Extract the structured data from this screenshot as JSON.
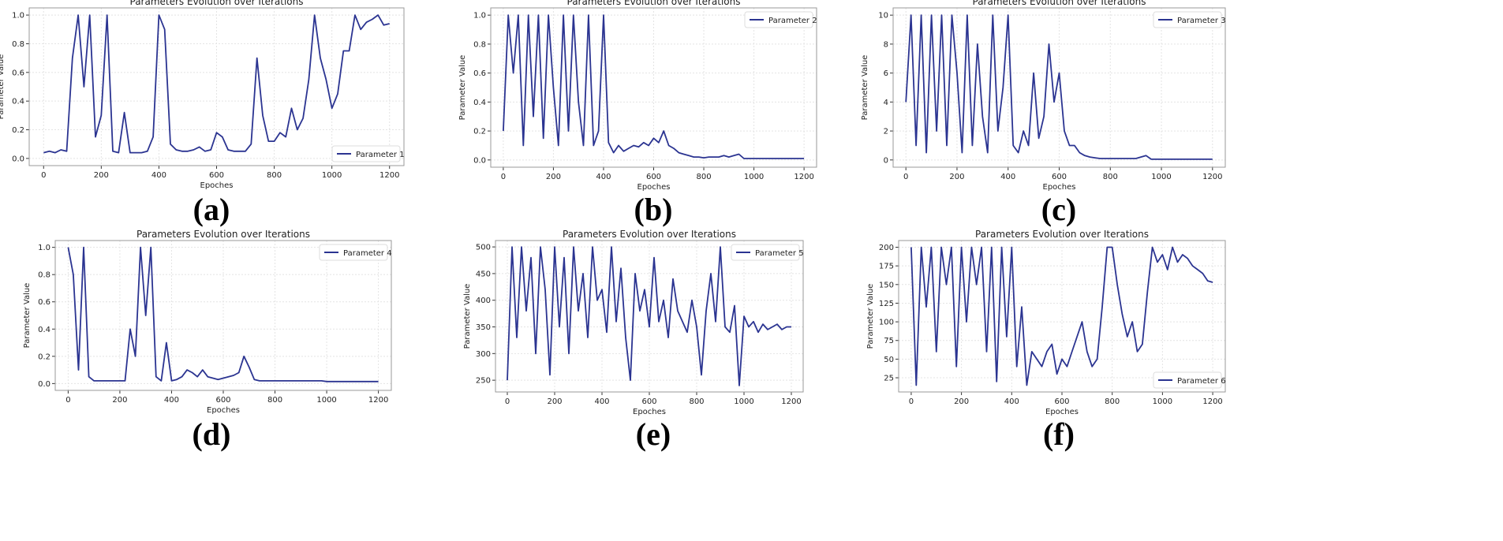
{
  "line_color": "#2b3491",
  "chart_data": [
    {
      "type": "line",
      "panel_label": "(a)",
      "title": "Parameters Evolution over Iterations",
      "xlabel": "Epoches",
      "ylabel": "Parameter Value",
      "legend": "Parameter 1",
      "legend_loc": "bottom-right",
      "grid": true,
      "xlim": [
        -50,
        1250
      ],
      "ylim": [
        -0.05,
        1.05
      ],
      "xticks": [
        0,
        200,
        400,
        600,
        800,
        1000,
        1200
      ],
      "yticks": [
        "0.0",
        "0.2",
        "0.4",
        "0.6",
        "0.8",
        "1.0"
      ],
      "x_start": 0,
      "x_step": 20,
      "values": [
        0.04,
        0.05,
        0.04,
        0.06,
        0.05,
        0.7,
        1.0,
        0.5,
        1.0,
        0.15,
        0.3,
        1.0,
        0.05,
        0.04,
        0.32,
        0.04,
        0.04,
        0.04,
        0.05,
        0.15,
        1.0,
        0.9,
        0.1,
        0.06,
        0.05,
        0.05,
        0.06,
        0.08,
        0.05,
        0.06,
        0.18,
        0.15,
        0.06,
        0.05,
        0.05,
        0.05,
        0.1,
        0.7,
        0.3,
        0.12,
        0.12,
        0.18,
        0.15,
        0.35,
        0.2,
        0.28,
        0.55,
        1.0,
        0.7,
        0.55,
        0.35,
        0.45,
        0.75,
        0.75,
        1.0,
        0.9,
        0.95,
        0.97,
        1.0,
        0.93,
        0.94
      ]
    },
    {
      "type": "line",
      "panel_label": "(b)",
      "title": "Parameters Evolution over Iterations",
      "xlabel": "Epoches",
      "ylabel": "Parameter Value",
      "legend": "Parameter 2",
      "legend_loc": "top-right",
      "grid": true,
      "xlim": [
        -50,
        1250
      ],
      "ylim": [
        -0.05,
        1.05
      ],
      "xticks": [
        0,
        200,
        400,
        600,
        800,
        1000,
        1200
      ],
      "yticks": [
        "0.0",
        "0.2",
        "0.4",
        "0.6",
        "0.8",
        "1.0"
      ],
      "x_start": 0,
      "x_step": 20,
      "values": [
        0.2,
        1.0,
        0.6,
        1.0,
        0.1,
        1.0,
        0.3,
        1.0,
        0.15,
        1.0,
        0.5,
        0.1,
        1.0,
        0.2,
        1.0,
        0.4,
        0.1,
        1.0,
        0.1,
        0.2,
        1.0,
        0.12,
        0.05,
        0.1,
        0.06,
        0.08,
        0.1,
        0.09,
        0.12,
        0.1,
        0.15,
        0.12,
        0.2,
        0.1,
        0.08,
        0.05,
        0.04,
        0.03,
        0.02,
        0.02,
        0.015,
        0.02,
        0.02,
        0.02,
        0.03,
        0.02,
        0.03,
        0.04,
        0.01,
        0.01,
        0.01,
        0.01,
        0.01,
        0.01,
        0.01,
        0.01,
        0.01,
        0.01,
        0.01,
        0.01,
        0.01
      ]
    },
    {
      "type": "line",
      "panel_label": "(c)",
      "title": "Parameters Evolution over Iterations",
      "xlabel": "Epoches",
      "ylabel": "Parameter Value",
      "legend": "Parameter 3",
      "legend_loc": "top-right",
      "grid": true,
      "xlim": [
        -50,
        1250
      ],
      "ylim": [
        -0.5,
        10.5
      ],
      "xticks": [
        0,
        200,
        400,
        600,
        800,
        1000,
        1200
      ],
      "yticks": [
        "0",
        "2",
        "4",
        "6",
        "8",
        "10"
      ],
      "x_start": 0,
      "x_step": 20,
      "values": [
        4,
        10,
        1,
        10,
        0.5,
        10,
        2,
        10,
        1,
        10,
        6,
        0.5,
        10,
        1,
        8,
        3,
        0.5,
        10,
        2,
        5,
        10,
        1,
        0.5,
        2,
        1,
        6,
        1.5,
        3,
        8,
        4,
        6,
        2,
        1,
        1,
        0.5,
        0.3,
        0.2,
        0.15,
        0.1,
        0.1,
        0.1,
        0.1,
        0.1,
        0.1,
        0.1,
        0.1,
        0.2,
        0.3,
        0.05,
        0.05,
        0.05,
        0.05,
        0.05,
        0.05,
        0.05,
        0.05,
        0.05,
        0.05,
        0.05,
        0.05,
        0.05
      ]
    },
    {
      "type": "line",
      "panel_label": "(d)",
      "title": "Parameters Evolution over Iterations",
      "xlabel": "Epoches",
      "ylabel": "Parameter Value",
      "legend": "Parameter 4",
      "legend_loc": "top-right",
      "grid": true,
      "xlim": [
        -50,
        1250
      ],
      "ylim": [
        -0.05,
        1.05
      ],
      "xticks": [
        0,
        200,
        400,
        600,
        800,
        1000,
        1200
      ],
      "yticks": [
        "0.0",
        "0.2",
        "0.4",
        "0.6",
        "0.8",
        "1.0"
      ],
      "x_start": 0,
      "x_step": 20,
      "values": [
        1.0,
        0.8,
        0.1,
        1.0,
        0.05,
        0.02,
        0.02,
        0.02,
        0.02,
        0.02,
        0.02,
        0.02,
        0.4,
        0.2,
        1.0,
        0.5,
        1.0,
        0.05,
        0.02,
        0.3,
        0.02,
        0.03,
        0.05,
        0.1,
        0.08,
        0.05,
        0.1,
        0.05,
        0.04,
        0.03,
        0.04,
        0.05,
        0.06,
        0.08,
        0.2,
        0.12,
        0.03,
        0.02,
        0.02,
        0.02,
        0.02,
        0.02,
        0.02,
        0.02,
        0.02,
        0.02,
        0.02,
        0.02,
        0.02,
        0.02,
        0.015,
        0.015,
        0.015,
        0.015,
        0.015,
        0.015,
        0.015,
        0.015,
        0.015,
        0.015,
        0.015
      ]
    },
    {
      "type": "line",
      "panel_label": "(e)",
      "title": "Parameters Evolution over Iterations",
      "xlabel": "Epoches",
      "ylabel": "Parameter Value",
      "legend": "Parameter 5",
      "legend_loc": "top-right",
      "grid": true,
      "xlim": [
        -50,
        1250
      ],
      "ylim": [
        228,
        512
      ],
      "xticks": [
        0,
        200,
        400,
        600,
        800,
        1000,
        1200
      ],
      "yticks": [
        "250",
        "300",
        "350",
        "400",
        "450",
        "500"
      ],
      "x_start": 0,
      "x_step": 20,
      "values": [
        250,
        500,
        330,
        500,
        380,
        480,
        300,
        500,
        420,
        260,
        500,
        350,
        480,
        300,
        500,
        380,
        450,
        330,
        500,
        400,
        420,
        340,
        500,
        360,
        460,
        330,
        250,
        450,
        380,
        420,
        350,
        480,
        360,
        400,
        330,
        440,
        380,
        360,
        340,
        400,
        350,
        260,
        380,
        450,
        360,
        500,
        350,
        340,
        390,
        240,
        370,
        350,
        360,
        340,
        355,
        345,
        350,
        355,
        345,
        350,
        350
      ]
    },
    {
      "type": "line",
      "panel_label": "(f)",
      "title": "Parameters Evolution over Iterations",
      "xlabel": "Epoches",
      "ylabel": "Parameter Value",
      "legend": "Parameter 6",
      "legend_loc": "bottom-right",
      "grid": true,
      "xlim": [
        -50,
        1250
      ],
      "ylim": [
        6,
        209
      ],
      "xticks": [
        0,
        200,
        400,
        600,
        800,
        1000,
        1200
      ],
      "yticks": [
        "25",
        "50",
        "75",
        "100",
        "125",
        "150",
        "175",
        "200"
      ],
      "x_start": 0,
      "x_step": 20,
      "values": [
        200,
        15,
        200,
        120,
        200,
        60,
        200,
        150,
        200,
        40,
        200,
        100,
        200,
        150,
        200,
        60,
        200,
        20,
        200,
        80,
        200,
        40,
        120,
        15,
        60,
        50,
        40,
        60,
        70,
        30,
        50,
        40,
        60,
        80,
        100,
        60,
        40,
        50,
        120,
        200,
        200,
        150,
        110,
        80,
        100,
        60,
        70,
        140,
        200,
        180,
        190,
        170,
        200,
        180,
        190,
        185,
        175,
        170,
        165,
        155,
        153
      ]
    }
  ]
}
